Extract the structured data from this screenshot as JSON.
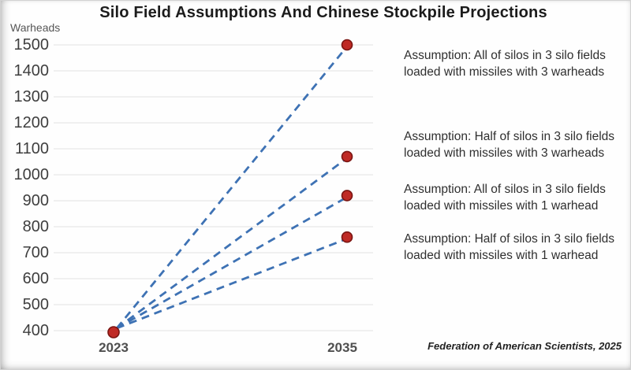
{
  "title": "Silo Field Assumptions And Chinese Stockpile Projections",
  "attribution": "Federation of American Scientists, 2025",
  "chart_data": {
    "type": "line",
    "title": "Silo Field Assumptions And Chinese Stockpile Projections",
    "xlabel": "",
    "ylabel": "Warheads",
    "x_categories": [
      "2023",
      "2035"
    ],
    "ylim": [
      400,
      1500
    ],
    "y_ticks": [
      1500,
      1400,
      1300,
      1200,
      1100,
      1000,
      900,
      800,
      700,
      600,
      500,
      400
    ],
    "grid": true,
    "line_style": "dashed",
    "line_color": "#3e72b4",
    "marker_fill_color": "#bf2a25",
    "marker_edge_color": "#7a1512",
    "gridline_color": "#e3e3e3",
    "series": [
      {
        "name": "All of silos in 3 silo fields loaded with missiles with 3 warheads",
        "values": [
          400,
          1500
        ]
      },
      {
        "name": "Half of silos in 3 silo fields loaded with missiles with 3 warheads",
        "values": [
          400,
          1070
        ]
      },
      {
        "name": "All of silos in 3 silo fields loaded with missiles with 1 warhead",
        "values": [
          400,
          920
        ]
      },
      {
        "name": "Half of silos in 3 silo fields loaded with missiles with 1 warhead",
        "values": [
          400,
          760
        ]
      }
    ],
    "legend_position": "right-annotations"
  },
  "assumptions": [
    {
      "line1": "Assumption: All of silos in 3 silo fields",
      "line2": "loaded with missiles with 3 warheads"
    },
    {
      "line1": "Assumption: Half of silos in 3 silo fields",
      "line2": "loaded with missiles with 3 warheads"
    },
    {
      "line1": "Assumption: All of silos in 3 silo fields",
      "line2": "loaded with missiles with 1 warhead"
    },
    {
      "line1": "Assumption: Half of silos in 3 silo fields",
      "line2": "loaded with missiles with 1 warhead"
    }
  ]
}
